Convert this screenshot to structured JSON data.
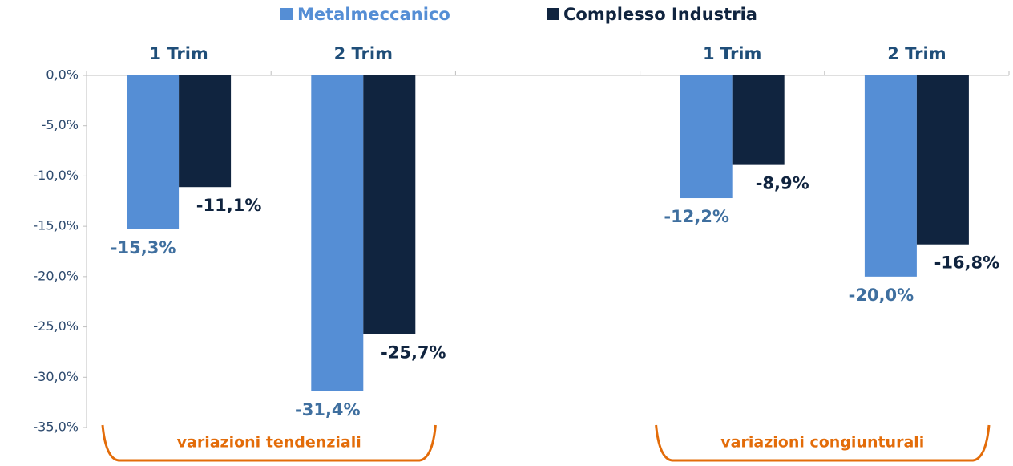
{
  "chart_data": {
    "type": "bar",
    "categories": [
      "1 Trim",
      "2 Trim",
      null,
      "1 Trim",
      "2 Trim"
    ],
    "series": [
      {
        "name": "Metalmeccanico",
        "color": "#558ed5",
        "values": [
          -15.3,
          -31.4,
          null,
          -12.2,
          -20.0
        ],
        "value_labels": [
          "-15,3%",
          "-31,4%",
          null,
          "-12,2%",
          "-20,0%"
        ]
      },
      {
        "name": "Complesso Industria",
        "color": "#10243f",
        "values": [
          -11.1,
          -25.7,
          null,
          -8.9,
          -16.8
        ],
        "value_labels": [
          "-11,1%",
          "-25,7%",
          null,
          "-8,9%",
          "-16,8%"
        ]
      }
    ],
    "ylim": [
      -35,
      0
    ],
    "yticks": [
      {
        "value": 0,
        "label": "0,0%"
      },
      {
        "value": -5,
        "label": "-5,0%"
      },
      {
        "value": -10,
        "label": "-10,0%"
      },
      {
        "value": -15,
        "label": "-15,0%"
      },
      {
        "value": -20,
        "label": "-20,0%"
      },
      {
        "value": -25,
        "label": "-25,0%"
      },
      {
        "value": -30,
        "label": "-30,0%"
      },
      {
        "value": -35,
        "label": "-35,0%"
      }
    ],
    "annotations": [
      "variazioni tendenziali",
      "variazioni congiunturali"
    ],
    "legend": "top"
  }
}
